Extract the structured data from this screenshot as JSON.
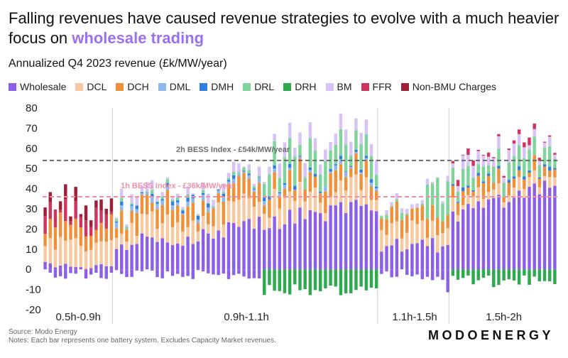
{
  "title": {
    "main": "Falling revenues have caused revenue strategies to evolve with a much heavier focus on ",
    "highlight": "wholesale trading"
  },
  "subtitle": "Annualized Q4 2023 revenue (£k/MW/year)",
  "colors": {
    "Wholesale": "#8b5fe8",
    "DCL": "#f6c9a0",
    "DCH": "#f0913a",
    "DML": "#8fb9ec",
    "DMH": "#2f7fe3",
    "DRL": "#7ed49a",
    "DRH": "#2ea94e",
    "BM": "#d7c3f5",
    "FFR": "#d0345f",
    "Non-BMU Charges": "#a01f36",
    "index2h": "#6b6b6b",
    "index1h": "#f08fa8"
  },
  "legend": [
    "Wholesale",
    "DCL",
    "DCH",
    "DML",
    "DMH",
    "DRL",
    "DRH",
    "BM",
    "FFR",
    "Non-BMU Charges"
  ],
  "chart_data": {
    "type": "bar",
    "stacked": true,
    "ylim": [
      -20,
      80
    ],
    "yticks": [
      "80",
      "70",
      "60",
      "50",
      "40",
      "30",
      "20",
      "10",
      "0",
      "-10",
      "-20"
    ],
    "ytick_values": [
      80,
      70,
      60,
      50,
      40,
      30,
      20,
      10,
      0,
      -10,
      -20
    ],
    "groups": [
      {
        "label": "0.5h-0.9h",
        "count": 14
      },
      {
        "label": "0.9h-1.1h",
        "count": 52
      },
      {
        "label": "1.1h-1.5h",
        "count": 14
      },
      {
        "label": "1.5h-2h",
        "count": 21
      }
    ],
    "reference_lines": [
      {
        "label": "2h BESS Index - £54k/MW/year",
        "value": 54
      },
      {
        "label": "1h BESS Index - £36k/MW/year",
        "value": 36
      }
    ],
    "series_keys": [
      "Wholesale",
      "DCL",
      "DCH",
      "DML",
      "DMH",
      "DRL",
      "DRH",
      "BM",
      "FFR",
      "Non-BMU Charges"
    ],
    "seed": 7
  },
  "footer": {
    "source": "Source: Modo Energy",
    "notes": "Notes: Each bar represents one battery system. Excludes Capacity Market revenues."
  },
  "brand": "MODOENERGY"
}
